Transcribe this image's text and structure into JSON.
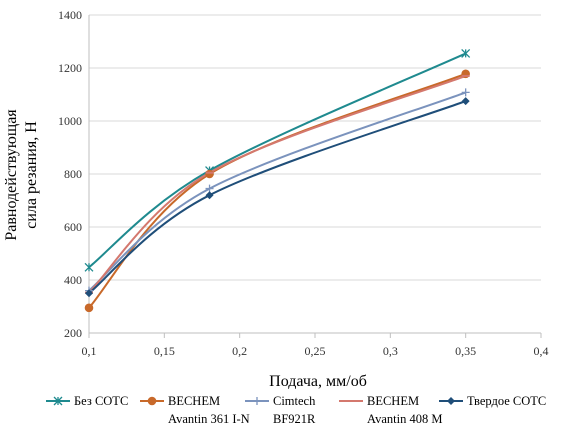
{
  "chart_data": {
    "type": "line",
    "title": "",
    "xlabel": "Подача, мм/об",
    "ylabel_lines": [
      "Равнодействующая",
      "сила резания, Н"
    ],
    "xlim": [
      0.1,
      0.4
    ],
    "ylim": [
      200,
      1400
    ],
    "x_ticks": [
      0.1,
      0.15,
      0.2,
      0.25,
      0.3,
      0.35,
      0.4
    ],
    "x_tick_labels": [
      "0,1",
      "0,15",
      "0,2",
      "0,25",
      "0,3",
      "0,35",
      "0,4"
    ],
    "y_ticks": [
      200,
      400,
      600,
      800,
      1000,
      1200,
      1400
    ],
    "y_tick_labels": [
      "200",
      "400",
      "600",
      "800",
      "1000",
      "1200",
      "1400"
    ],
    "grid": "horizontal",
    "legend_position": "bottom",
    "series": [
      {
        "name_lines": [
          "Без СОТС"
        ],
        "color": "#1f8a8f",
        "marker": "star",
        "x": [
          0.1,
          0.18,
          0.35
        ],
        "y": [
          448,
          813,
          1255
        ]
      },
      {
        "name_lines": [
          "BECHEM",
          "Avantin 361 I-N"
        ],
        "color": "#c8692a",
        "marker": "circle",
        "x": [
          0.1,
          0.18,
          0.35
        ],
        "y": [
          295,
          800,
          1178
        ]
      },
      {
        "name_lines": [
          "Cimtech",
          "BF921R"
        ],
        "color": "#7b93bd",
        "marker": "plus",
        "x": [
          0.1,
          0.18,
          0.35
        ],
        "y": [
          360,
          745,
          1108
        ]
      },
      {
        "name_lines": [
          "BECHEM",
          "Avantin 408 M"
        ],
        "color": "#d4786e",
        "marker": "dash",
        "x": [
          0.1,
          0.18,
          0.35
        ],
        "y": [
          352,
          805,
          1170
        ]
      },
      {
        "name_lines": [
          "Твердое СОТС"
        ],
        "color": "#1f4e79",
        "marker": "diamond",
        "x": [
          0.1,
          0.18,
          0.35
        ],
        "y": [
          350,
          720,
          1075
        ]
      }
    ]
  }
}
